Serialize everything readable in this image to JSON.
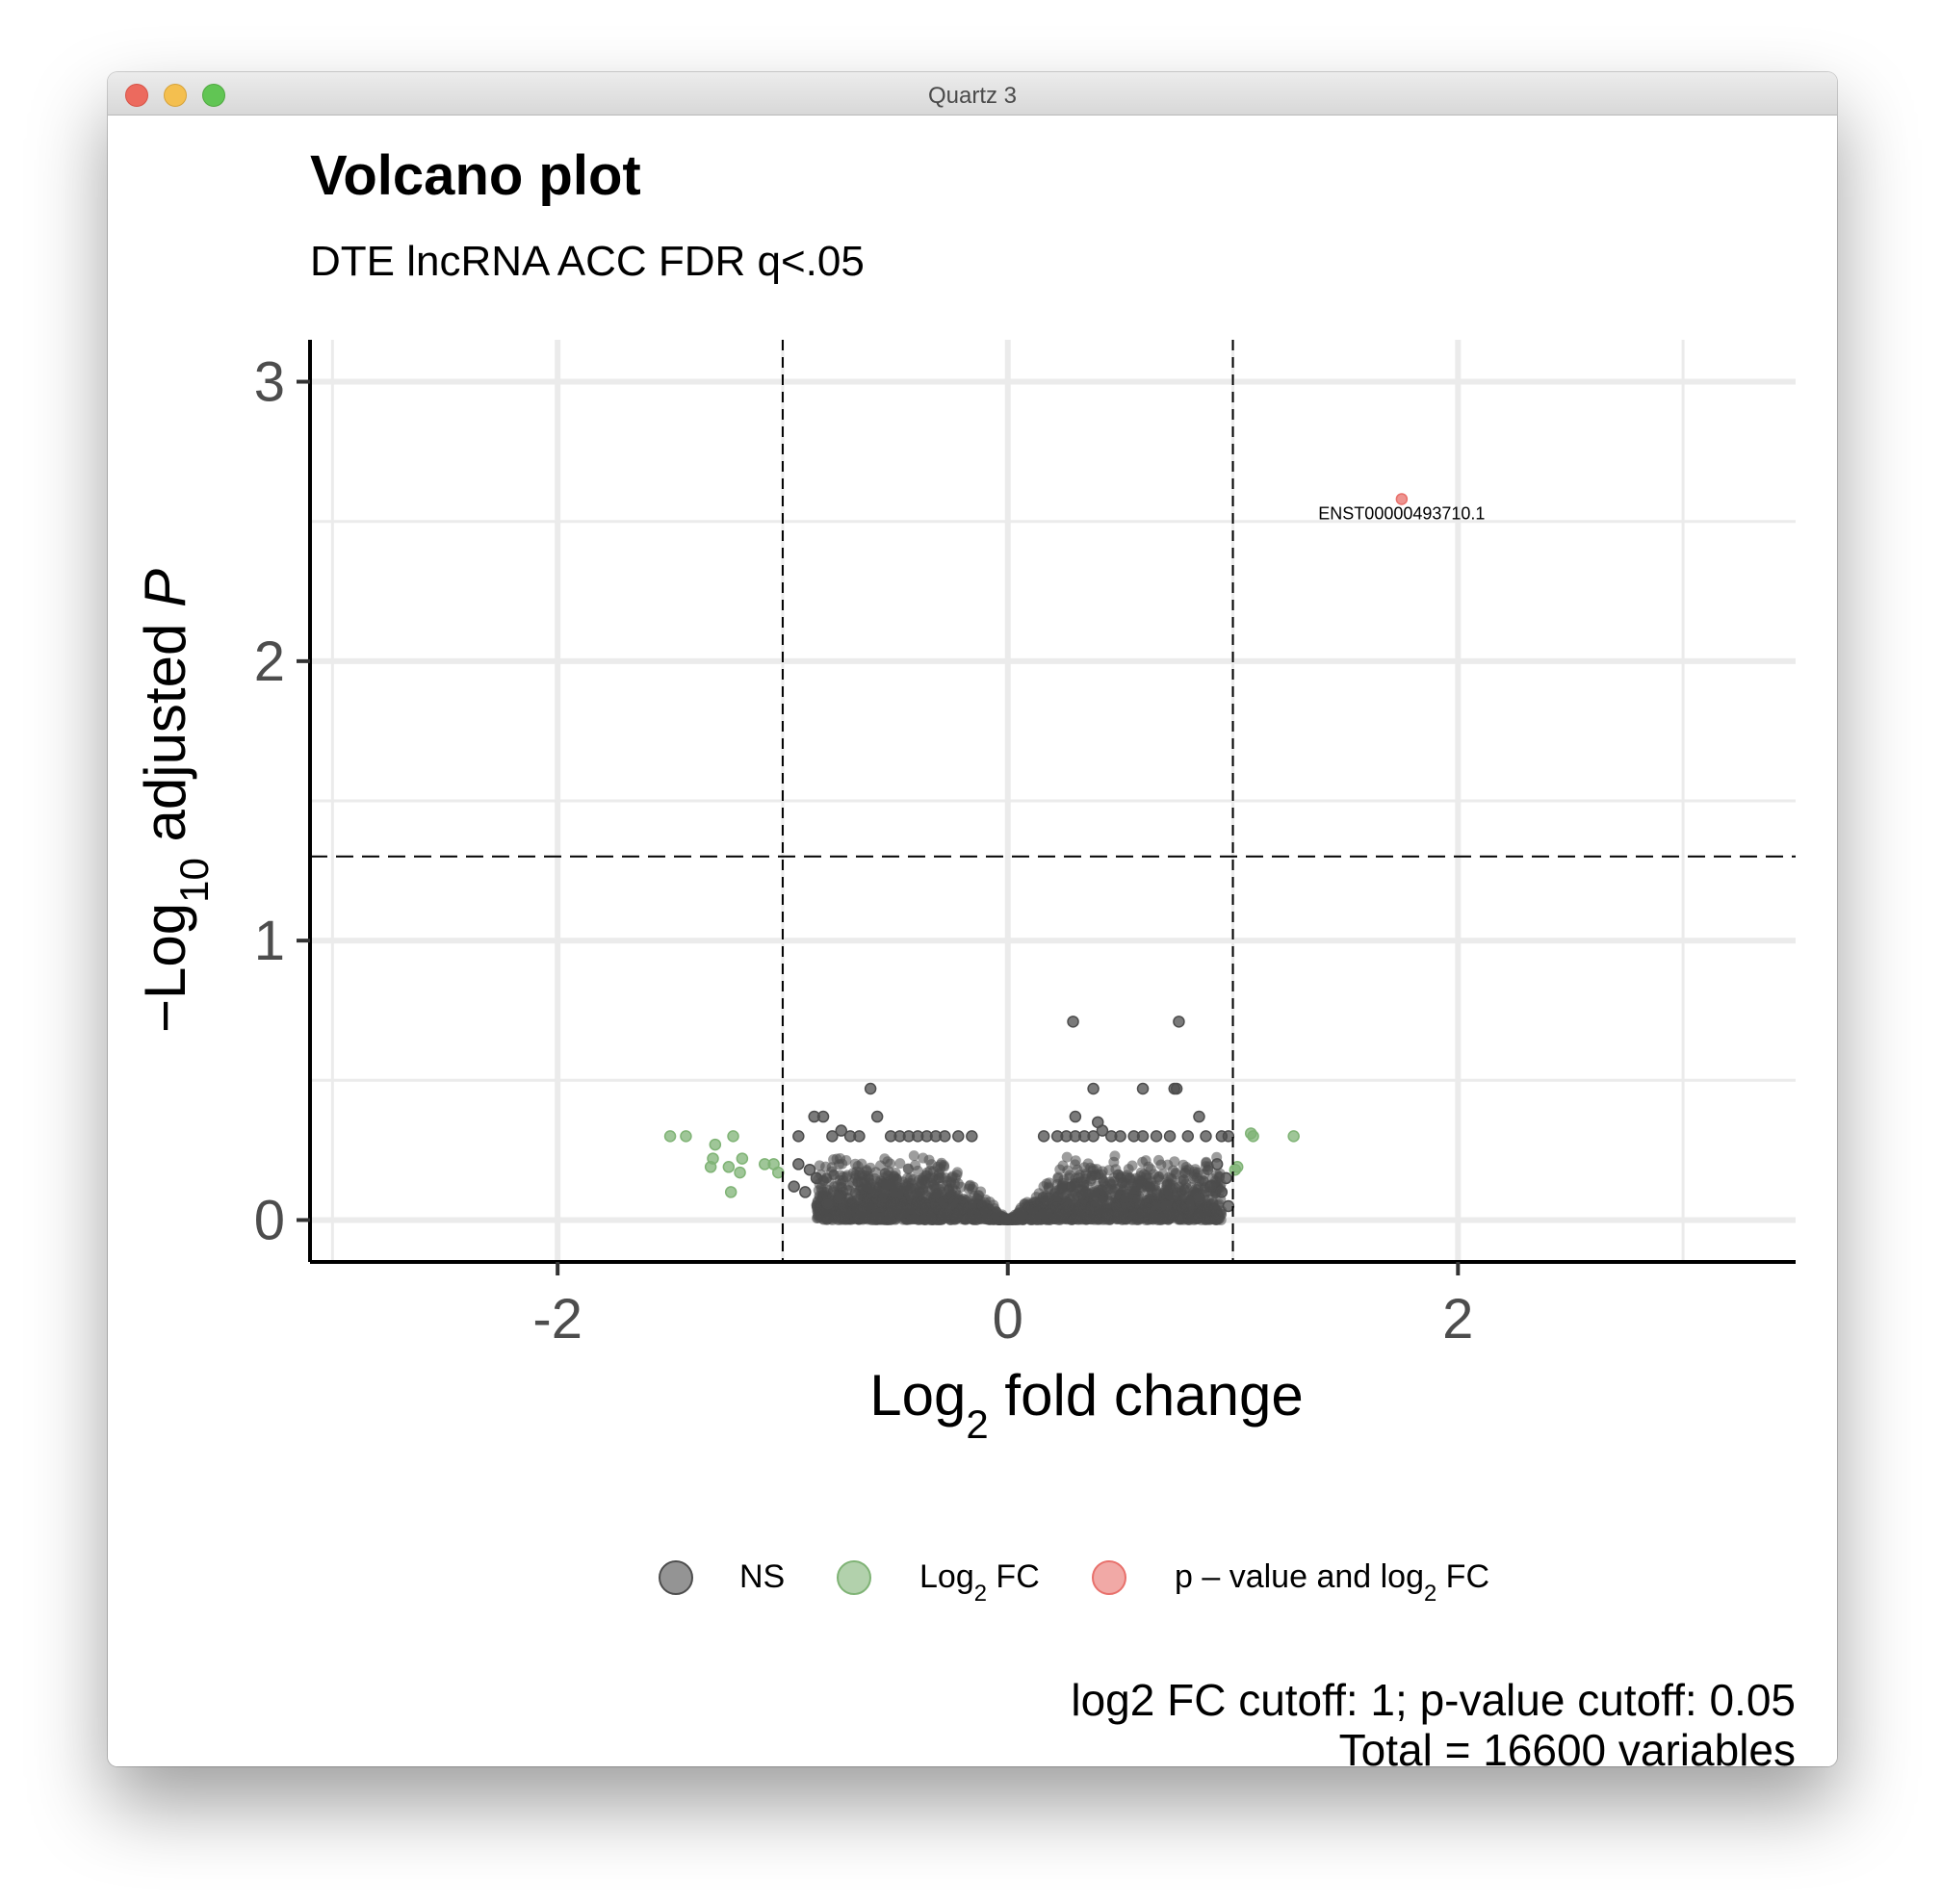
{
  "window": {
    "title": "Quartz 3"
  },
  "colors": {
    "ns": "#4d4d4d",
    "log2fc": "#7fb375",
    "pval_and_log2fc": "#e8706b",
    "grid": "#ebebeb",
    "axis": "#000000"
  },
  "chart_data": {
    "type": "scatter",
    "title": "Volcano plot",
    "subtitle": "DTE lncRNA ACC FDR q<.05",
    "xlabel": "Log2 fold change",
    "ylabel": "−Log10 adjusted P",
    "xlim": [
      -3.1,
      3.5
    ],
    "ylim": [
      -0.15,
      3.15
    ],
    "x_ticks": [
      -2,
      0,
      2
    ],
    "x_tick_labels": [
      "-2",
      "0",
      "2"
    ],
    "y_ticks": [
      0,
      1,
      2,
      3
    ],
    "y_tick_labels": [
      "0",
      "1",
      "2",
      "3"
    ],
    "grid": true,
    "cutoff_lines": {
      "fc": [
        -1,
        1
      ],
      "p_log10": 1.301
    },
    "legend_position": "bottom",
    "legend": [
      {
        "key": "ns",
        "label": "NS"
      },
      {
        "key": "log2fc",
        "label": "Log2 FC"
      },
      {
        "key": "pval_and_log2fc",
        "label": "p – value and log2 FC"
      }
    ],
    "caption_lines": [
      "log2 FC cutoff: 1; p-value cutoff: 0.05",
      "Total = 16600 variables"
    ],
    "series": [
      {
        "name": "NS",
        "color_key": "ns",
        "points": [
          [
            0.29,
            0.71
          ],
          [
            0.76,
            0.71
          ],
          [
            -0.61,
            0.47
          ],
          [
            0.38,
            0.47
          ],
          [
            0.6,
            0.47
          ],
          [
            0.74,
            0.47
          ],
          [
            0.75,
            0.47
          ],
          [
            0.85,
            0.37
          ],
          [
            -0.86,
            0.37
          ],
          [
            -0.82,
            0.37
          ],
          [
            0.3,
            0.37
          ],
          [
            -0.58,
            0.37
          ],
          [
            0.4,
            0.35
          ],
          [
            -0.93,
            0.3
          ],
          [
            -0.78,
            0.3
          ],
          [
            -0.74,
            0.32
          ],
          [
            -0.7,
            0.3
          ],
          [
            -0.66,
            0.3
          ],
          [
            -0.52,
            0.3
          ],
          [
            -0.48,
            0.3
          ],
          [
            -0.44,
            0.3
          ],
          [
            -0.4,
            0.3
          ],
          [
            -0.36,
            0.3
          ],
          [
            -0.32,
            0.3
          ],
          [
            -0.28,
            0.3
          ],
          [
            -0.22,
            0.3
          ],
          [
            -0.16,
            0.3
          ],
          [
            0.16,
            0.3
          ],
          [
            0.22,
            0.3
          ],
          [
            0.26,
            0.3
          ],
          [
            0.3,
            0.3
          ],
          [
            0.34,
            0.3
          ],
          [
            0.38,
            0.3
          ],
          [
            0.42,
            0.32
          ],
          [
            0.46,
            0.3
          ],
          [
            0.5,
            0.3
          ],
          [
            0.56,
            0.3
          ],
          [
            0.6,
            0.3
          ],
          [
            0.66,
            0.3
          ],
          [
            0.72,
            0.3
          ],
          [
            0.8,
            0.3
          ],
          [
            0.88,
            0.3
          ],
          [
            0.95,
            0.3
          ],
          [
            0.98,
            0.3
          ],
          [
            -0.93,
            0.2
          ],
          [
            -0.88,
            0.18
          ],
          [
            -0.85,
            0.15
          ],
          [
            -0.95,
            0.12
          ],
          [
            -0.9,
            0.1
          ],
          [
            -0.8,
            0.06
          ],
          [
            -0.75,
            0.08
          ],
          [
            0.93,
            0.2
          ],
          [
            0.97,
            0.15
          ],
          [
            0.9,
            0.12
          ],
          [
            0.95,
            0.1
          ],
          [
            0.85,
            0.08
          ],
          [
            0.98,
            0.05
          ]
        ],
        "density_band": {
          "x_min": -0.85,
          "x_max": 0.95,
          "y_max": 0.24
        }
      },
      {
        "name": "Log2 FC",
        "color_key": "log2fc",
        "points": [
          [
            -1.5,
            0.3
          ],
          [
            -1.43,
            0.3
          ],
          [
            -1.3,
            0.27
          ],
          [
            -1.31,
            0.22
          ],
          [
            -1.32,
            0.19
          ],
          [
            -1.24,
            0.19
          ],
          [
            -1.22,
            0.3
          ],
          [
            -1.19,
            0.17
          ],
          [
            -1.18,
            0.22
          ],
          [
            -1.23,
            0.1
          ],
          [
            -1.08,
            0.2
          ],
          [
            -1.04,
            0.2
          ],
          [
            -1.02,
            0.17
          ],
          [
            1.08,
            0.31
          ],
          [
            1.09,
            0.3
          ],
          [
            1.27,
            0.3
          ],
          [
            1.01,
            0.18
          ],
          [
            1.02,
            0.19
          ]
        ]
      },
      {
        "name": "p – value and log2 FC",
        "color_key": "pval_and_log2fc",
        "points": [
          [
            1.75,
            2.58
          ]
        ],
        "labels": [
          {
            "text": "ENST00000493710.1",
            "x": 1.75,
            "y": 2.58
          }
        ]
      }
    ]
  }
}
